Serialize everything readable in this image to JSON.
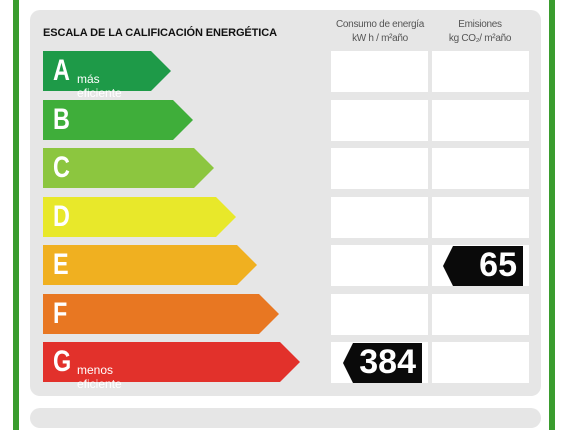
{
  "header": {
    "title": "ESCALA DE LA CALIFICACIÓN ENERGÉTICA",
    "consumption": {
      "line1": "Consumo de energía",
      "line2": "kW h / m²año"
    },
    "emissions": {
      "line1": "Emisiones",
      "line2": "kg CO₂/ m²año"
    }
  },
  "ratings": [
    {
      "letter": "A",
      "sub": "más eficiente",
      "color": "#1e9a48"
    },
    {
      "letter": "B",
      "sub": "",
      "color": "#3fae3a"
    },
    {
      "letter": "C",
      "sub": "",
      "color": "#8cc63f"
    },
    {
      "letter": "D",
      "sub": "",
      "color": "#e8e82a"
    },
    {
      "letter": "E",
      "sub": "",
      "color": "#f0b020"
    },
    {
      "letter": "F",
      "sub": "",
      "color": "#e87722"
    },
    {
      "letter": "G",
      "sub": "menos eficiente",
      "color": "#e2312b"
    }
  ],
  "consumption_value": {
    "rating": "G",
    "value": "384"
  },
  "emissions_value": {
    "rating": "E",
    "value": "65"
  }
}
